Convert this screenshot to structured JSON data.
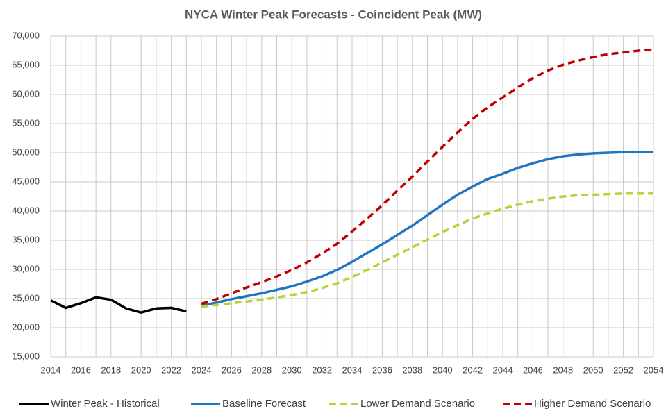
{
  "chart_data": {
    "type": "line",
    "title": "NYCA Winter Peak Forecasts - Coincident Peak (MW)",
    "x": [
      2014,
      2015,
      2016,
      2017,
      2018,
      2019,
      2020,
      2021,
      2022,
      2023,
      2024,
      2025,
      2026,
      2027,
      2028,
      2029,
      2030,
      2031,
      2032,
      2033,
      2034,
      2035,
      2036,
      2037,
      2038,
      2039,
      2040,
      2041,
      2042,
      2043,
      2044,
      2045,
      2046,
      2047,
      2048,
      2049,
      2050,
      2051,
      2052,
      2053,
      2054
    ],
    "xlim": [
      2014,
      2054
    ],
    "xticks": [
      2014,
      2016,
      2018,
      2020,
      2022,
      2024,
      2026,
      2028,
      2030,
      2032,
      2034,
      2036,
      2038,
      2040,
      2042,
      2044,
      2046,
      2048,
      2050,
      2052,
      2054
    ],
    "ylim": [
      15000,
      70000
    ],
    "yticks": [
      {
        "value": 15000,
        "label": "15,000"
      },
      {
        "value": 20000,
        "label": "20,000"
      },
      {
        "value": 25000,
        "label": "25,000"
      },
      {
        "value": 30000,
        "label": "30,000"
      },
      {
        "value": 35000,
        "label": "35,000"
      },
      {
        "value": 40000,
        "label": "40,000"
      },
      {
        "value": 45000,
        "label": "45,000"
      },
      {
        "value": 50000,
        "label": "50,000"
      },
      {
        "value": 55000,
        "label": "55,000"
      },
      {
        "value": 60000,
        "label": "60,000"
      },
      {
        "value": 65000,
        "label": "65,000"
      },
      {
        "value": 70000,
        "label": "70,000"
      }
    ],
    "grid": true,
    "legend": "bottom",
    "series": [
      {
        "name": "Winter Peak - Historical",
        "color": "#000000",
        "style": "solid",
        "values": [
          24700,
          23400,
          24200,
          25200,
          24800,
          23300,
          22600,
          23300,
          23400,
          22800,
          null,
          null,
          null,
          null,
          null,
          null,
          null,
          null,
          null,
          null,
          null,
          null,
          null,
          null,
          null,
          null,
          null,
          null,
          null,
          null,
          null,
          null,
          null,
          null,
          null,
          null,
          null,
          null,
          null,
          null,
          null
        ]
      },
      {
        "name": "Baseline Forecast",
        "color": "#1f77c4",
        "style": "solid",
        "values": [
          null,
          null,
          null,
          null,
          null,
          null,
          null,
          null,
          null,
          null,
          23800,
          24300,
          24900,
          25400,
          25900,
          26500,
          27100,
          27900,
          28800,
          29900,
          31300,
          32800,
          34300,
          35900,
          37500,
          39300,
          41100,
          42800,
          44200,
          45500,
          46400,
          47400,
          48200,
          48900,
          49400,
          49700,
          49900,
          50000,
          50100,
          50100,
          50100
        ]
      },
      {
        "name": "Lower Demand Scenario",
        "color": "#b5d334",
        "style": "dashed",
        "values": [
          null,
          null,
          null,
          null,
          null,
          null,
          null,
          null,
          null,
          null,
          23600,
          23900,
          24200,
          24500,
          24800,
          25200,
          25600,
          26100,
          26800,
          27600,
          28700,
          29900,
          31200,
          32500,
          33800,
          35100,
          36400,
          37600,
          38700,
          39600,
          40400,
          41100,
          41700,
          42100,
          42500,
          42700,
          42800,
          42900,
          43000,
          43000,
          43000
        ]
      },
      {
        "name": "Higher Demand Scenario",
        "color": "#c00000",
        "style": "dashed",
        "values": [
          null,
          null,
          null,
          null,
          null,
          null,
          null,
          null,
          null,
          null,
          24100,
          24900,
          25900,
          26900,
          27800,
          28800,
          29900,
          31200,
          32700,
          34400,
          36500,
          38700,
          41000,
          43500,
          45900,
          48500,
          51000,
          53500,
          55800,
          57800,
          59500,
          61200,
          62800,
          64100,
          65100,
          65800,
          66400,
          66900,
          67200,
          67500,
          67700
        ]
      }
    ]
  }
}
